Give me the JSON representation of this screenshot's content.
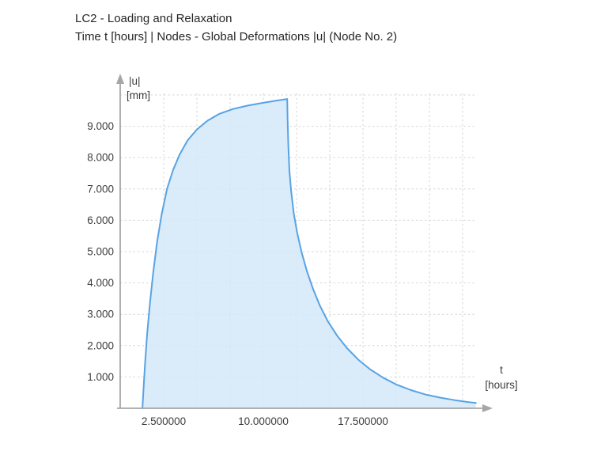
{
  "header": {
    "title": "LC2 - Loading and Relaxation",
    "subtitle": "Time t [hours] | Nodes - Global Deformations |u| (Node No. 2)"
  },
  "axis_labels": {
    "y_line1": "|u|",
    "y_line2": "[mm]",
    "x_line1": "t",
    "x_line2": "[hours]"
  },
  "chart_data": {
    "type": "area",
    "title": "LC2 - Loading and Relaxation",
    "subtitle": "Time t [hours] | Nodes - Global Deformations |u| (Node No. 2)",
    "xlabel": "t [hours]",
    "ylabel": "|u| [mm]",
    "xlim": [
      0,
      27.5
    ],
    "ylim": [
      0,
      10.5
    ],
    "grid": {
      "on": true,
      "x_step": 2.5,
      "x_max": 25,
      "y_step": 1,
      "y_max": 10,
      "style": "dashed"
    },
    "legend": "none",
    "x_ticks": [
      {
        "value": 2.5,
        "label": "2.500000"
      },
      {
        "value": 10.0,
        "label": "10.000000"
      },
      {
        "value": 17.5,
        "label": "17.500000"
      }
    ],
    "y_ticks": [
      {
        "value": 1,
        "label": "1.000"
      },
      {
        "value": 2,
        "label": "2.000"
      },
      {
        "value": 3,
        "label": "3.000"
      },
      {
        "value": 4,
        "label": "4.000"
      },
      {
        "value": 5,
        "label": "5.000"
      },
      {
        "value": 6,
        "label": "6.000"
      },
      {
        "value": 7,
        "label": "7.000"
      },
      {
        "value": 8,
        "label": "8.000"
      },
      {
        "value": 9,
        "label": "9.000"
      }
    ],
    "series": [
      {
        "name": "Global Deformations |u| (Node No. 2)",
        "points": [
          [
            0.9,
            0
          ],
          [
            1.0,
            0.75
          ],
          [
            1.1,
            1.45
          ],
          [
            1.25,
            2.35
          ],
          [
            1.45,
            3.3
          ],
          [
            1.7,
            4.3
          ],
          [
            2.0,
            5.3
          ],
          [
            2.35,
            6.2
          ],
          [
            2.75,
            7.0
          ],
          [
            3.2,
            7.6
          ],
          [
            3.7,
            8.1
          ],
          [
            4.3,
            8.55
          ],
          [
            5.0,
            8.9
          ],
          [
            5.8,
            9.18
          ],
          [
            6.7,
            9.4
          ],
          [
            7.7,
            9.55
          ],
          [
            8.8,
            9.66
          ],
          [
            10.0,
            9.75
          ],
          [
            11.0,
            9.82
          ],
          [
            11.8,
            9.87
          ],
          [
            11.83,
            9.2
          ],
          [
            11.88,
            8.4
          ],
          [
            11.96,
            7.6
          ],
          [
            12.1,
            6.9
          ],
          [
            12.3,
            6.2
          ],
          [
            12.55,
            5.6
          ],
          [
            12.9,
            4.95
          ],
          [
            13.3,
            4.35
          ],
          [
            13.75,
            3.8
          ],
          [
            14.25,
            3.28
          ],
          [
            14.85,
            2.78
          ],
          [
            15.55,
            2.32
          ],
          [
            16.3,
            1.92
          ],
          [
            17.15,
            1.55
          ],
          [
            18.05,
            1.24
          ],
          [
            19.0,
            0.98
          ],
          [
            20.0,
            0.76
          ],
          [
            21.1,
            0.58
          ],
          [
            22.2,
            0.44
          ],
          [
            23.3,
            0.34
          ],
          [
            24.4,
            0.26
          ],
          [
            25.4,
            0.2
          ],
          [
            26.0,
            0.17
          ]
        ]
      }
    ],
    "colors": {
      "line": "#57a3e4",
      "fill": "#d3e8f8",
      "grid": "#d6d6d6",
      "axis": "#a6a6a6",
      "tick_text": "#3d3d3d",
      "title_text": "#262626"
    }
  }
}
